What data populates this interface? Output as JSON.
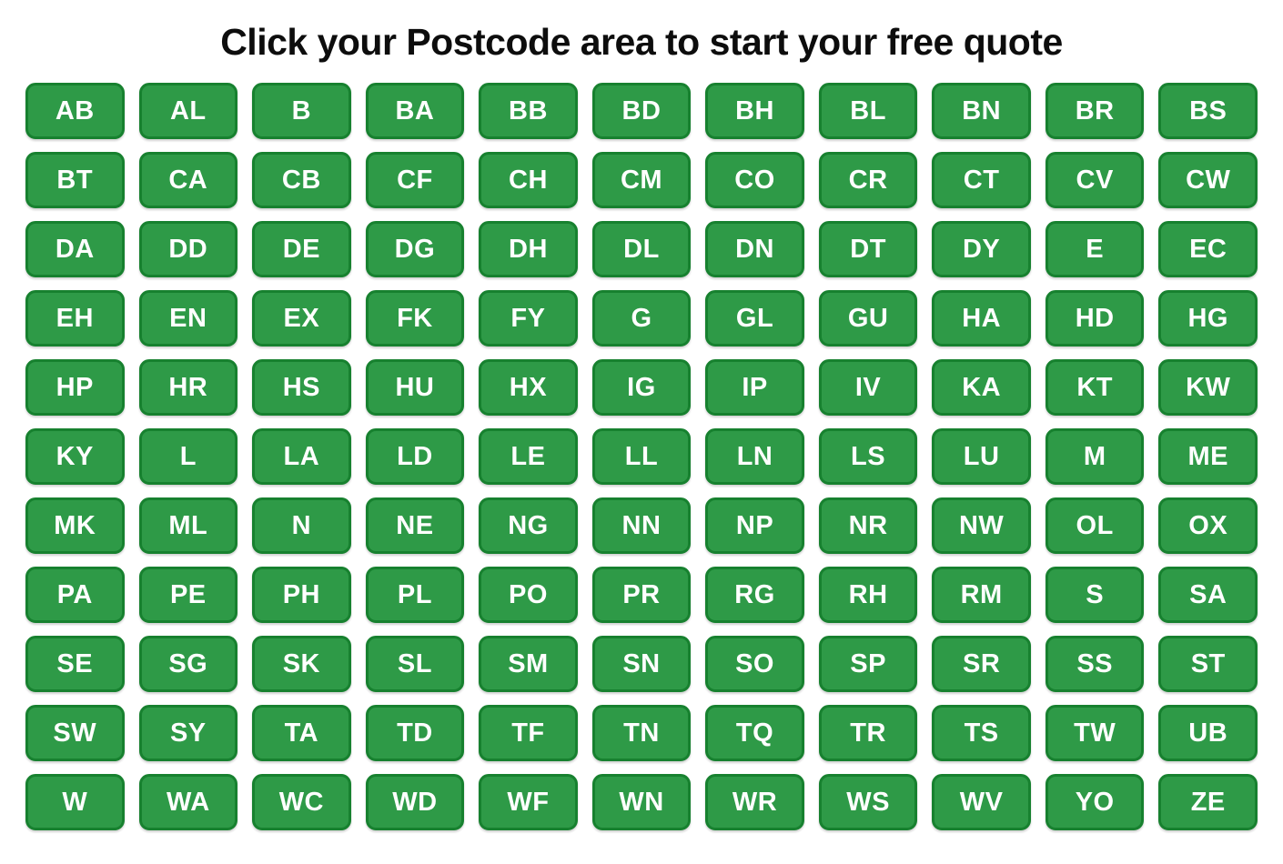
{
  "page": {
    "title": "Click your Postcode area to start your free quote"
  },
  "colors": {
    "button_bg": "#2e9a47",
    "button_border": "#17812f",
    "button_text": "#ffffff",
    "title_text": "#0d0d0d",
    "page_bg": "#ffffff"
  },
  "grid": {
    "columns": 11,
    "rows": 11
  },
  "postcodes": [
    "AB",
    "AL",
    "B",
    "BA",
    "BB",
    "BD",
    "BH",
    "BL",
    "BN",
    "BR",
    "BS",
    "BT",
    "CA",
    "CB",
    "CF",
    "CH",
    "CM",
    "CO",
    "CR",
    "CT",
    "CV",
    "CW",
    "DA",
    "DD",
    "DE",
    "DG",
    "DH",
    "DL",
    "DN",
    "DT",
    "DY",
    "E",
    "EC",
    "EH",
    "EN",
    "EX",
    "FK",
    "FY",
    "G",
    "GL",
    "GU",
    "HA",
    "HD",
    "HG",
    "HP",
    "HR",
    "HS",
    "HU",
    "HX",
    "IG",
    "IP",
    "IV",
    "KA",
    "KT",
    "KW",
    "KY",
    "L",
    "LA",
    "LD",
    "LE",
    "LL",
    "LN",
    "LS",
    "LU",
    "M",
    "ME",
    "MK",
    "ML",
    "N",
    "NE",
    "NG",
    "NN",
    "NP",
    "NR",
    "NW",
    "OL",
    "OX",
    "PA",
    "PE",
    "PH",
    "PL",
    "PO",
    "PR",
    "RG",
    "RH",
    "RM",
    "S",
    "SA",
    "SE",
    "SG",
    "SK",
    "SL",
    "SM",
    "SN",
    "SO",
    "SP",
    "SR",
    "SS",
    "ST",
    "SW",
    "SY",
    "TA",
    "TD",
    "TF",
    "TN",
    "TQ",
    "TR",
    "TS",
    "TW",
    "UB",
    "W",
    "WA",
    "WC",
    "WD",
    "WF",
    "WN",
    "WR",
    "WS",
    "WV",
    "YO",
    "ZE"
  ]
}
